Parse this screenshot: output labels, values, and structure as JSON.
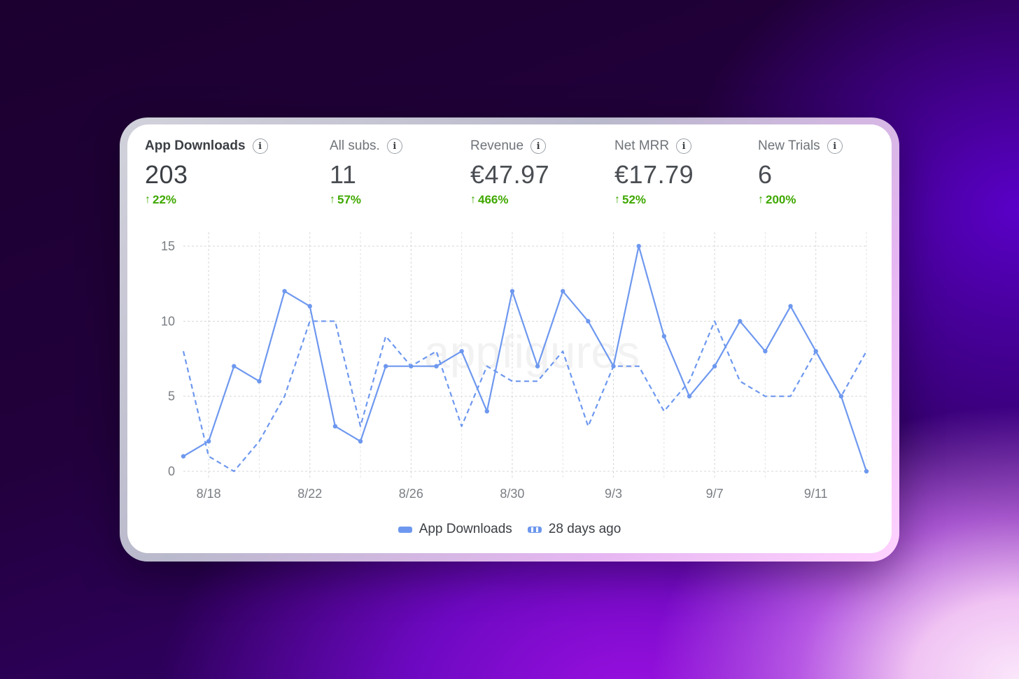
{
  "metrics": [
    {
      "label": "App Downloads",
      "value": "203",
      "change": "22%",
      "active": true
    },
    {
      "label": "All subs.",
      "value": "11",
      "change": "57%"
    },
    {
      "label": "Revenue",
      "value": "€47.97",
      "change": "466%"
    },
    {
      "label": "Net MRR",
      "value": "€17.79",
      "change": "52%"
    },
    {
      "label": "New Trials",
      "value": "6",
      "change": "200%"
    }
  ],
  "change_arrow": "↑",
  "info_glyph": "i",
  "watermark": "appfigures",
  "chart_data": {
    "type": "line",
    "x": [
      "8/17",
      "8/18",
      "8/19",
      "8/20",
      "8/21",
      "8/22",
      "8/23",
      "8/24",
      "8/25",
      "8/26",
      "8/27",
      "8/28",
      "8/29",
      "8/30",
      "8/31",
      "9/1",
      "9/2",
      "9/3",
      "9/4",
      "9/5",
      "9/6",
      "9/7",
      "9/8",
      "9/9",
      "9/10",
      "9/11",
      "9/12",
      "9/13"
    ],
    "x_tick_labels": [
      "8/18",
      "8/22",
      "8/26",
      "8/30",
      "9/3",
      "9/7",
      "9/11"
    ],
    "y_ticks": [
      0,
      5,
      10,
      15
    ],
    "ylim": [
      0,
      15
    ],
    "grid": true,
    "legend_position": "bottom-center",
    "series": [
      {
        "name": "App Downloads",
        "style": "solid",
        "color": "#6e98ef",
        "values": [
          1,
          2,
          7,
          6,
          12,
          11,
          3,
          2,
          7,
          7,
          7,
          8,
          4,
          12,
          7,
          12,
          10,
          7,
          15,
          9,
          5,
          7,
          10,
          8,
          11,
          8,
          5,
          0
        ]
      },
      {
        "name": "28 days ago",
        "style": "dashed",
        "color": "#6e98ef",
        "values": [
          8,
          1,
          0,
          2,
          5,
          10,
          10,
          3,
          9,
          7,
          8,
          3,
          7,
          6,
          6,
          8,
          3,
          7,
          7,
          4,
          6,
          10,
          6,
          5,
          5,
          8,
          5,
          8
        ]
      }
    ]
  }
}
